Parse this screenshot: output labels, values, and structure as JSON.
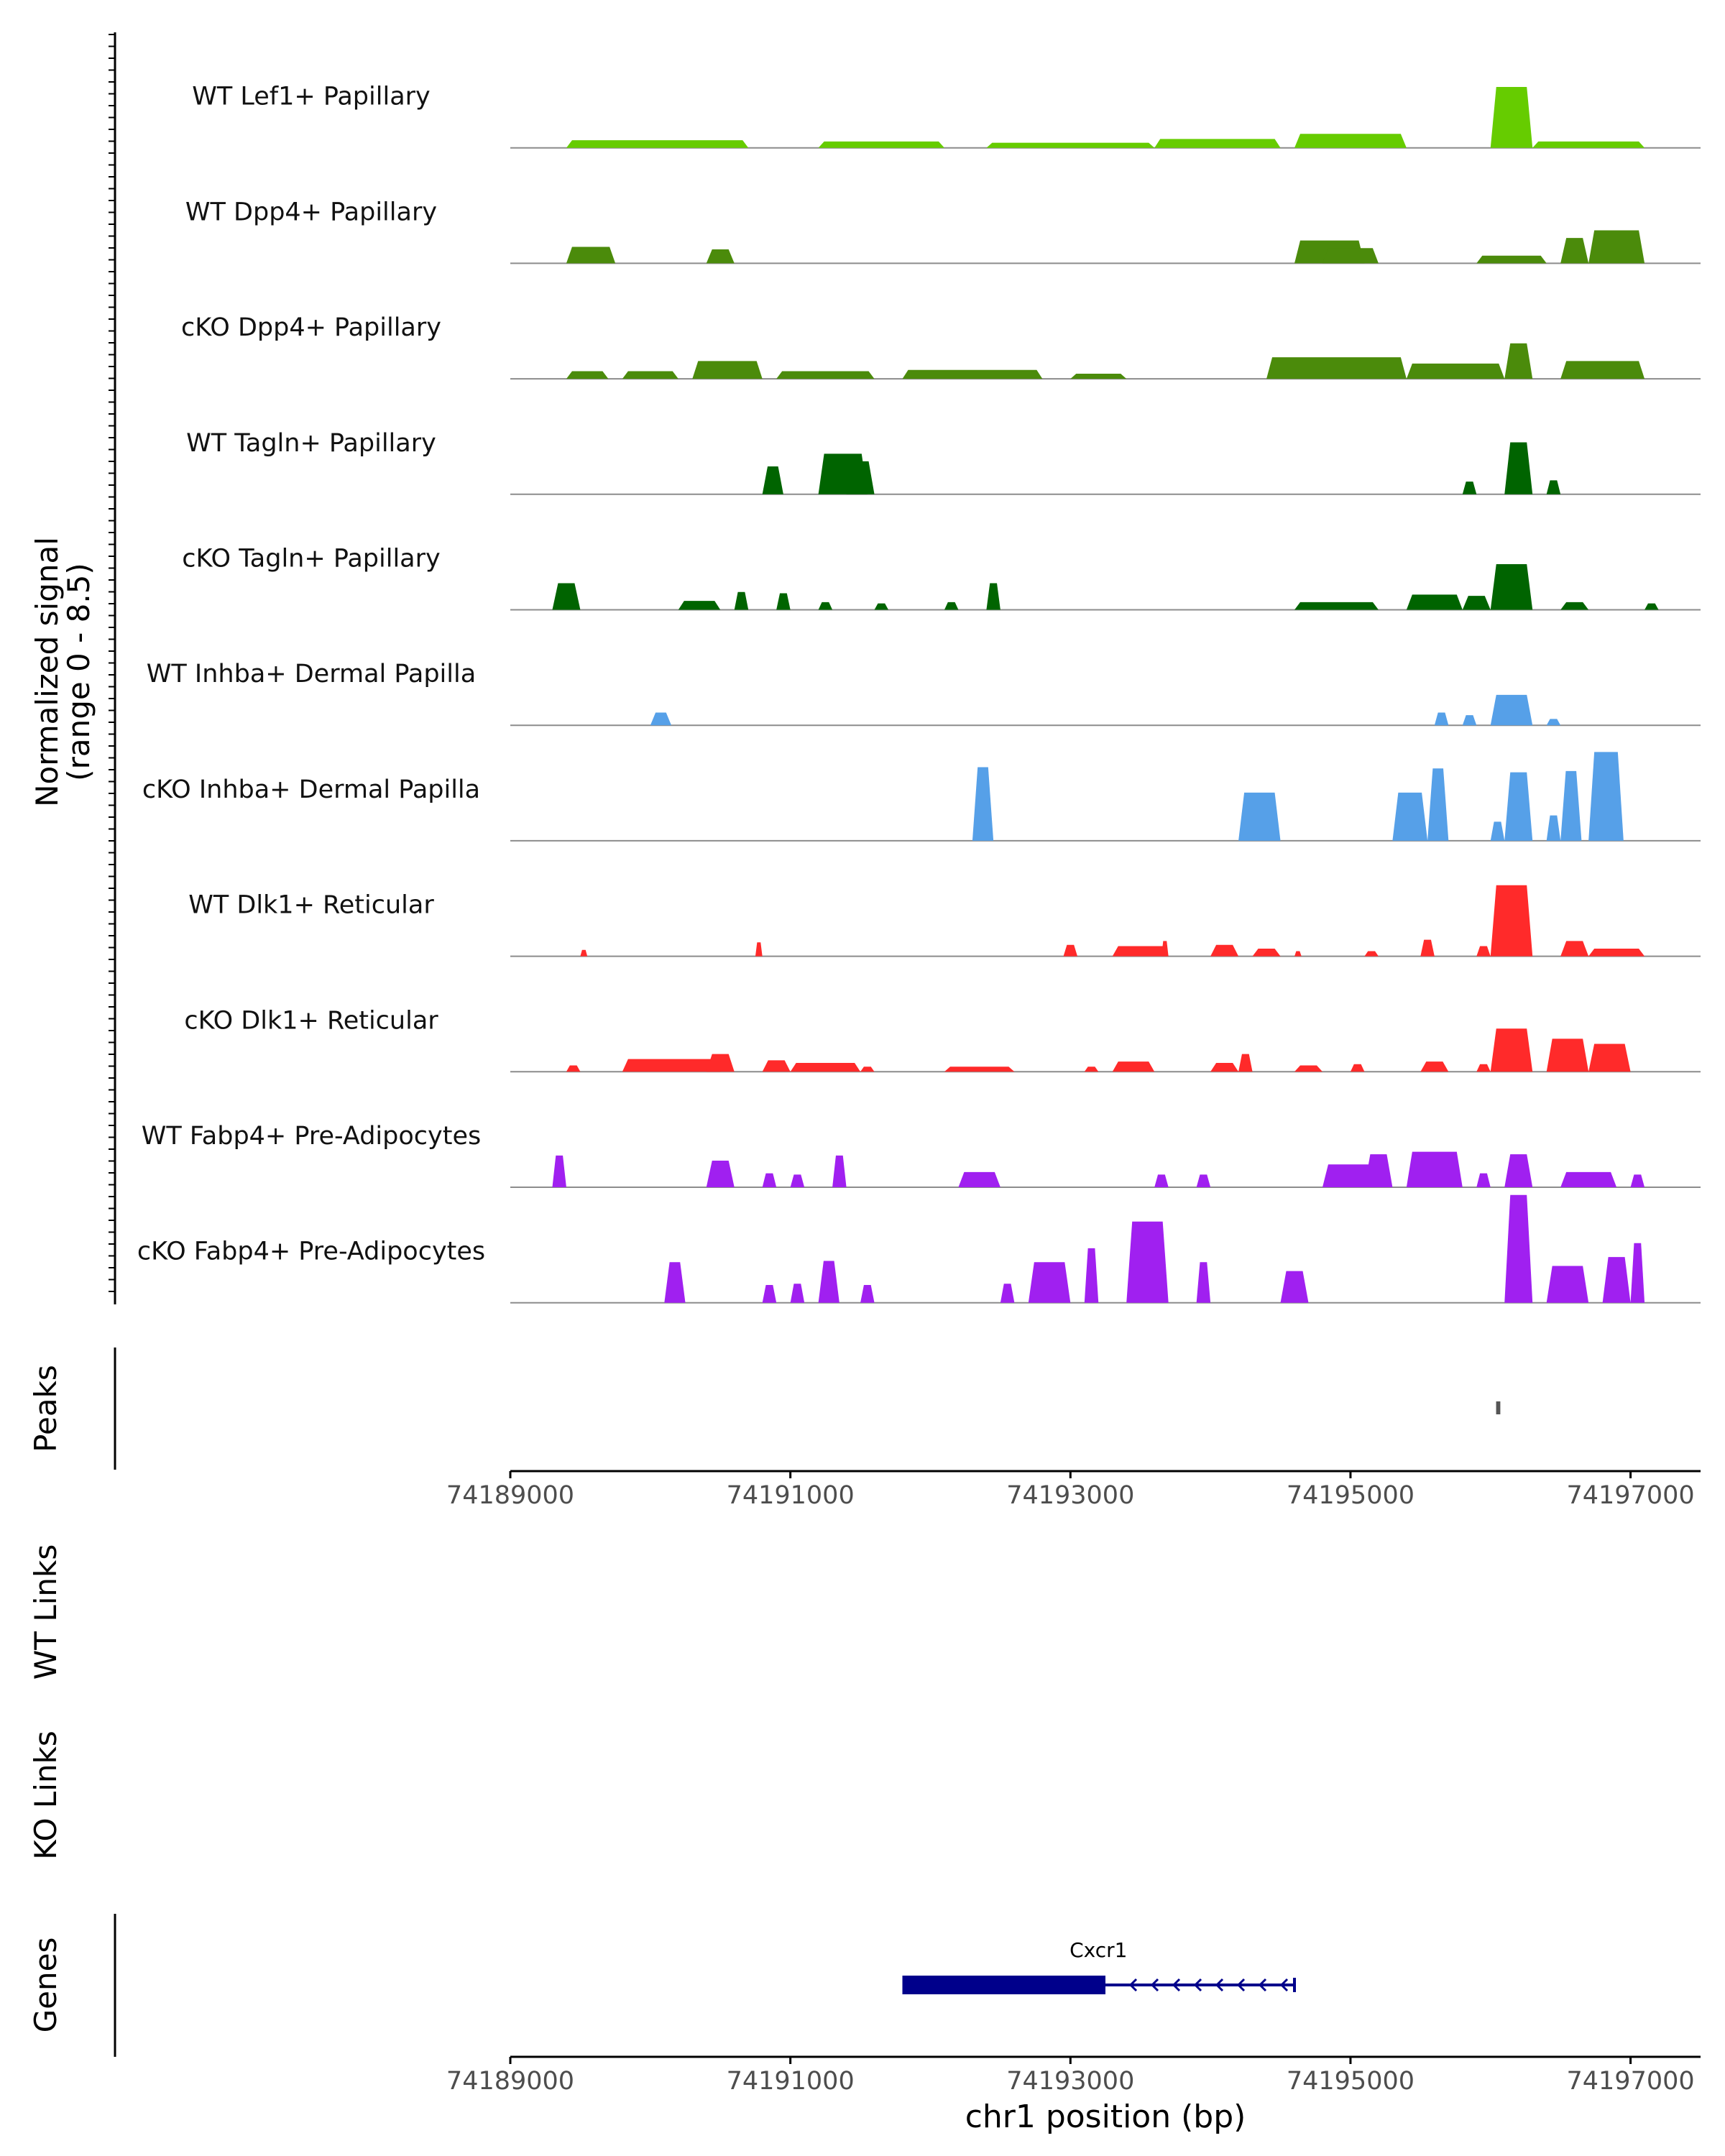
{
  "chart_data": {
    "type": "area",
    "title": "",
    "region": {
      "chrom": "chr1",
      "start": 74189000,
      "end": 74197000
    },
    "xlim": [
      74189000,
      74197500
    ],
    "xlabel": "chr1 position (bp)",
    "x_ticks": [
      74189000,
      74191000,
      74193000,
      74195000,
      74197000
    ],
    "x_tick_labels": [
      "74189000",
      "74191000",
      "74193000",
      "74195000",
      "74197000"
    ],
    "signal_axis_label": [
      "Normalized signal",
      "(range 0 - 8.5)"
    ],
    "signal_range": [
      0,
      8.5
    ],
    "tracks": [
      {
        "name": "WT Lef1+ Papillary",
        "color": "#66cc00",
        "regions": [
          [
            74189400,
            74190700,
            0.6
          ],
          [
            74191200,
            74192100,
            0.5
          ],
          [
            74192400,
            74193600,
            0.4
          ],
          [
            74193600,
            74194500,
            0.7
          ],
          [
            74194600,
            74195400,
            1.1
          ],
          [
            74196000,
            74196300,
            4.8
          ],
          [
            74196300,
            74197100,
            0.5
          ]
        ]
      },
      {
        "name": "WT Dpp4+ Papillary",
        "color": "#4b8b0b",
        "regions": [
          [
            74189400,
            74189750,
            1.3
          ],
          [
            74190400,
            74190600,
            1.1
          ],
          [
            74194600,
            74195100,
            1.8
          ],
          [
            74194800,
            74195200,
            1.2
          ],
          [
            74195900,
            74196400,
            0.6
          ],
          [
            74196500,
            74196700,
            2.0
          ],
          [
            74196700,
            74197100,
            2.6
          ]
        ]
      },
      {
        "name": "cKO Dpp4+ Papillary",
        "color": "#4b8b0b",
        "regions": [
          [
            74189400,
            74189700,
            0.6
          ],
          [
            74189800,
            74190200,
            0.6
          ],
          [
            74190300,
            74190800,
            1.4
          ],
          [
            74190900,
            74191600,
            0.6
          ],
          [
            74191800,
            74192800,
            0.7
          ],
          [
            74193000,
            74193400,
            0.4
          ],
          [
            74194400,
            74195400,
            1.7
          ],
          [
            74195400,
            74196100,
            1.2
          ],
          [
            74196100,
            74196300,
            2.8
          ],
          [
            74196500,
            74197100,
            1.4
          ]
        ]
      },
      {
        "name": "WT Tagln+ Papillary",
        "color": "#006400",
        "regions": [
          [
            74190800,
            74190950,
            2.2
          ],
          [
            74191200,
            74191550,
            3.2
          ],
          [
            74191400,
            74191600,
            2.6
          ],
          [
            74195800,
            74195900,
            1.0
          ],
          [
            74196100,
            74196300,
            4.1
          ],
          [
            74196400,
            74196500,
            1.1
          ]
        ]
      },
      {
        "name": "cKO Tagln+ Papillary",
        "color": "#006400",
        "regions": [
          [
            74189300,
            74189500,
            2.1
          ],
          [
            74190200,
            74190500,
            0.7
          ],
          [
            74190600,
            74190700,
            1.4
          ],
          [
            74190900,
            74191000,
            1.3
          ],
          [
            74191200,
            74191300,
            0.6
          ],
          [
            74191600,
            74191700,
            0.5
          ],
          [
            74192100,
            74192200,
            0.6
          ],
          [
            74192400,
            74192500,
            2.1
          ],
          [
            74194600,
            74195200,
            0.6
          ],
          [
            74195400,
            74195800,
            1.2
          ],
          [
            74195800,
            74196000,
            1.1
          ],
          [
            74196000,
            74196300,
            3.6
          ],
          [
            74196500,
            74196700,
            0.6
          ],
          [
            74197100,
            74197200,
            0.5
          ]
        ]
      },
      {
        "name": "WT Inhba+ Dermal Papilla",
        "color": "#56a0e8",
        "regions": [
          [
            74190000,
            74190150,
            1.0
          ],
          [
            74195600,
            74195700,
            1.0
          ],
          [
            74195800,
            74195900,
            0.8
          ],
          [
            74196000,
            74196300,
            2.4
          ],
          [
            74196400,
            74196500,
            0.5
          ]
        ]
      },
      {
        "name": "cKO Inhba+ Dermal Papilla",
        "color": "#56a0e8",
        "regions": [
          [
            74192300,
            74192450,
            5.8
          ],
          [
            74194200,
            74194500,
            3.8
          ],
          [
            74195300,
            74195550,
            3.8
          ],
          [
            74195550,
            74195700,
            5.7
          ],
          [
            74196000,
            74196100,
            1.5
          ],
          [
            74196100,
            74196300,
            5.4
          ],
          [
            74196400,
            74196500,
            2.0
          ],
          [
            74196500,
            74196650,
            5.5
          ],
          [
            74196700,
            74196950,
            7.0
          ]
        ]
      },
      {
        "name": "WT Dlk1+ Reticular",
        "color": "#ff2a2a",
        "regions": [
          [
            74189500,
            74189550,
            0.5
          ],
          [
            74190750,
            74190800,
            1.1
          ],
          [
            74192950,
            74193050,
            0.9
          ],
          [
            74193300,
            74193700,
            0.8
          ],
          [
            74193650,
            74193700,
            1.2
          ],
          [
            74194000,
            74194200,
            0.9
          ],
          [
            74194300,
            74194500,
            0.6
          ],
          [
            74194600,
            74194650,
            0.4
          ],
          [
            74195100,
            74195200,
            0.4
          ],
          [
            74195500,
            74195600,
            1.3
          ],
          [
            74195900,
            74196000,
            0.8
          ],
          [
            74196000,
            74196300,
            5.6
          ],
          [
            74196500,
            74196700,
            1.2
          ],
          [
            74196700,
            74197100,
            0.6
          ]
        ]
      },
      {
        "name": "cKO Dlk1+ Reticular",
        "color": "#ff2a2a",
        "regions": [
          [
            74189400,
            74189500,
            0.5
          ],
          [
            74189800,
            74190500,
            1.0
          ],
          [
            74190400,
            74190600,
            1.4
          ],
          [
            74190800,
            74191000,
            0.9
          ],
          [
            74191000,
            74191500,
            0.7
          ],
          [
            74191500,
            74191600,
            0.4
          ],
          [
            74192100,
            74192600,
            0.4
          ],
          [
            74193100,
            74193200,
            0.4
          ],
          [
            74193300,
            74193600,
            0.8
          ],
          [
            74194000,
            74194200,
            0.7
          ],
          [
            74194200,
            74194300,
            1.4
          ],
          [
            74194600,
            74194800,
            0.5
          ],
          [
            74195000,
            74195100,
            0.6
          ],
          [
            74195500,
            74195700,
            0.8
          ],
          [
            74195900,
            74196000,
            0.6
          ],
          [
            74196000,
            74196300,
            3.4
          ],
          [
            74196400,
            74196700,
            2.6
          ],
          [
            74196700,
            74197000,
            2.2
          ]
        ]
      },
      {
        "name": "WT Fabp4+ Pre-Adipocytes",
        "color": "#a020f0",
        "regions": [
          [
            74189300,
            74189400,
            2.5
          ],
          [
            74190400,
            74190600,
            2.1
          ],
          [
            74190800,
            74190900,
            1.1
          ],
          [
            74191000,
            74191100,
            1.0
          ],
          [
            74191300,
            74191400,
            2.5
          ],
          [
            74192200,
            74192500,
            1.2
          ],
          [
            74193600,
            74193700,
            1.0
          ],
          [
            74193900,
            74194000,
            1.0
          ],
          [
            74194800,
            74195200,
            1.8
          ],
          [
            74195100,
            74195300,
            2.6
          ],
          [
            74195400,
            74195800,
            2.8
          ],
          [
            74195900,
            74196000,
            1.1
          ],
          [
            74196100,
            74196300,
            2.6
          ],
          [
            74196500,
            74196900,
            1.2
          ],
          [
            74197000,
            74197100,
            1.0
          ]
        ]
      },
      {
        "name": "cKO Fabp4+ Pre-Adipocytes",
        "color": "#a020f0",
        "regions": [
          [
            74190100,
            74190250,
            3.2
          ],
          [
            74190800,
            74190900,
            1.4
          ],
          [
            74191000,
            74191100,
            1.5
          ],
          [
            74191200,
            74191350,
            3.3
          ],
          [
            74191500,
            74191600,
            1.4
          ],
          [
            74192500,
            74192600,
            1.5
          ],
          [
            74192700,
            74193000,
            3.2
          ],
          [
            74193100,
            74193200,
            4.3
          ],
          [
            74193400,
            74193700,
            6.4
          ],
          [
            74193900,
            74194000,
            3.2
          ],
          [
            74194500,
            74194700,
            2.5
          ],
          [
            74196100,
            74196300,
            8.5
          ],
          [
            74196400,
            74196700,
            2.9
          ],
          [
            74196800,
            74197000,
            3.6
          ],
          [
            74197000,
            74197100,
            4.7
          ]
        ]
      }
    ],
    "peaks": {
      "label": "Peaks",
      "regions": [
        [
          74196040,
          74196070
        ]
      ]
    },
    "links": [
      {
        "label": "WT Links",
        "items": []
      },
      {
        "label": "KO Links",
        "items": []
      }
    ],
    "genes": {
      "label": "Genes",
      "items": [
        {
          "name": "Cxcr1",
          "start": 74191800,
          "end": 74194600,
          "strand": "-",
          "cds_start": 74191800,
          "cds_end": 74193250
        }
      ]
    }
  }
}
